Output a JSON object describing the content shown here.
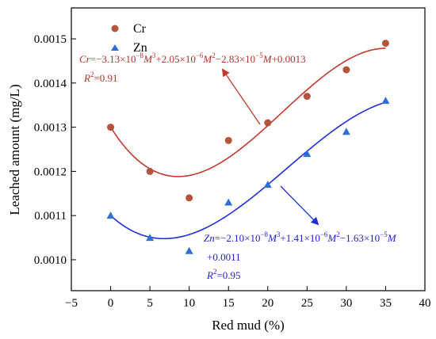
{
  "chart_data": {
    "type": "scatter",
    "xlabel": "Red mud (%)",
    "ylabel": "Leached amount (mg/L)",
    "xlim": [
      -5,
      40
    ],
    "ylim": [
      0.00093,
      0.00157
    ],
    "xticks": [
      -5,
      0,
      5,
      10,
      15,
      20,
      25,
      30,
      35,
      40
    ],
    "xtick_labels": [
      "−5",
      "0",
      "5",
      "10",
      "15",
      "20",
      "25",
      "30",
      "35",
      "40"
    ],
    "yticks": [
      0.001,
      0.0011,
      0.0012,
      0.0013,
      0.0014,
      0.0015
    ],
    "ytick_labels": [
      "0.0010",
      "0.0011",
      "0.0012",
      "0.0013",
      "0.0014",
      "0.0015"
    ],
    "grid": false,
    "legend_position": "top-left",
    "series": [
      {
        "name": "Cr",
        "marker": "circle",
        "color": "#b5533c",
        "line_color": "#c23a2e",
        "x": [
          0,
          5,
          10,
          15,
          20,
          25,
          30,
          35
        ],
        "y": [
          0.0013,
          0.0012,
          0.00114,
          0.00127,
          0.00131,
          0.00137,
          0.00143,
          0.00149
        ],
        "fit": {
          "c3": -3.13e-08,
          "c2": 2.05e-06,
          "c1": -2.83e-05,
          "c0": 0.0013,
          "x_range": [
            0,
            35
          ]
        }
      },
      {
        "name": "Zn",
        "marker": "triangle",
        "color": "#2f6fd6",
        "line_color": "#1f2fd8",
        "x": [
          0,
          5,
          10,
          15,
          20,
          25,
          30,
          35
        ],
        "y": [
          0.0011,
          0.00105,
          0.00102,
          0.00113,
          0.00117,
          0.00124,
          0.00129,
          0.00136
        ],
        "fit": {
          "c3": -2.1e-08,
          "c2": 1.41e-06,
          "c1": -1.63e-05,
          "c0": 0.0011,
          "x_range": [
            0,
            35
          ]
        }
      }
    ],
    "annotations": {
      "cr_equation": {
        "sym": "Cr",
        "p1": "=−3.13×10",
        "e1": "−8",
        "m1": "M",
        "e1b": "3",
        "p2": "+2.05×10",
        "e2": "−6",
        "m2": "M",
        "e2b": "2",
        "p3": "−2.83×10",
        "e3": "−5",
        "m3": "M",
        "p4": "+0.0013",
        "r2": "R",
        "r2sup": "2",
        "r2val": "=0.91"
      },
      "zn_equation": {
        "sym": "Zn",
        "p1": "=−2.10×10",
        "e1": "−8",
        "m1": "M",
        "e1b": "3",
        "p2": "+1.41×10",
        "e2": "−6",
        "m2": "M",
        "e2b": "2",
        "p3": "−1.63×10",
        "e3": "−5",
        "m3": "M",
        "line2": "+0.0011",
        "r2": "R",
        "r2sup": "2",
        "r2val": "=0.95"
      }
    }
  }
}
